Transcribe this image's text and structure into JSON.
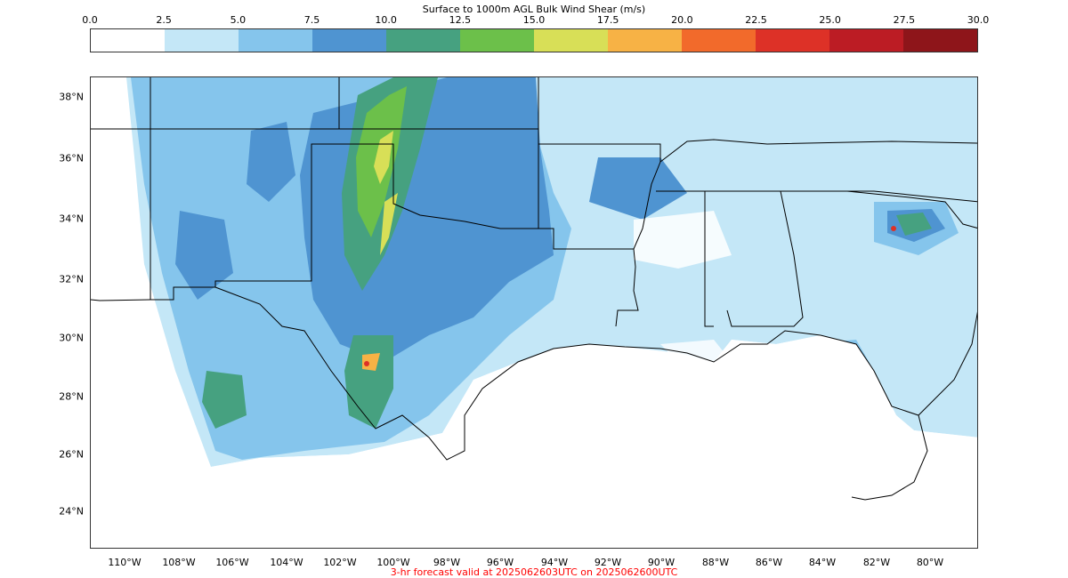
{
  "title": "Surface to 1000m AGL Bulk Wind Shear (m/s)",
  "colorbar": {
    "ticks": [
      "0.0",
      "2.5",
      "5.0",
      "7.5",
      "10.0",
      "12.5",
      "15.0",
      "17.5",
      "20.0",
      "22.5",
      "25.0",
      "27.5",
      "30.0"
    ],
    "colors": [
      "#ffffff",
      "#c4e7f7",
      "#85c5ec",
      "#4f94d1",
      "#46a180",
      "#6cc04a",
      "#d8df57",
      "#f7b245",
      "#f26a2b",
      "#dd3127",
      "#bc1c24",
      "#8e151a"
    ]
  },
  "map": {
    "lat_labels": [
      "38°N",
      "36°N",
      "34°N",
      "32°N",
      "30°N",
      "28°N",
      "26°N",
      "24°N"
    ],
    "lon_labels": [
      "110°W",
      "108°W",
      "106°W",
      "104°W",
      "102°W",
      "100°W",
      "98°W",
      "96°W",
      "94°W",
      "92°W",
      "90°W",
      "88°W",
      "86°W",
      "84°W",
      "82°W",
      "80°W"
    ]
  },
  "footer": {
    "text": "3-hr forecast valid at 2025062603UTC on 2025062600UTC",
    "color": "#ff0000"
  }
}
